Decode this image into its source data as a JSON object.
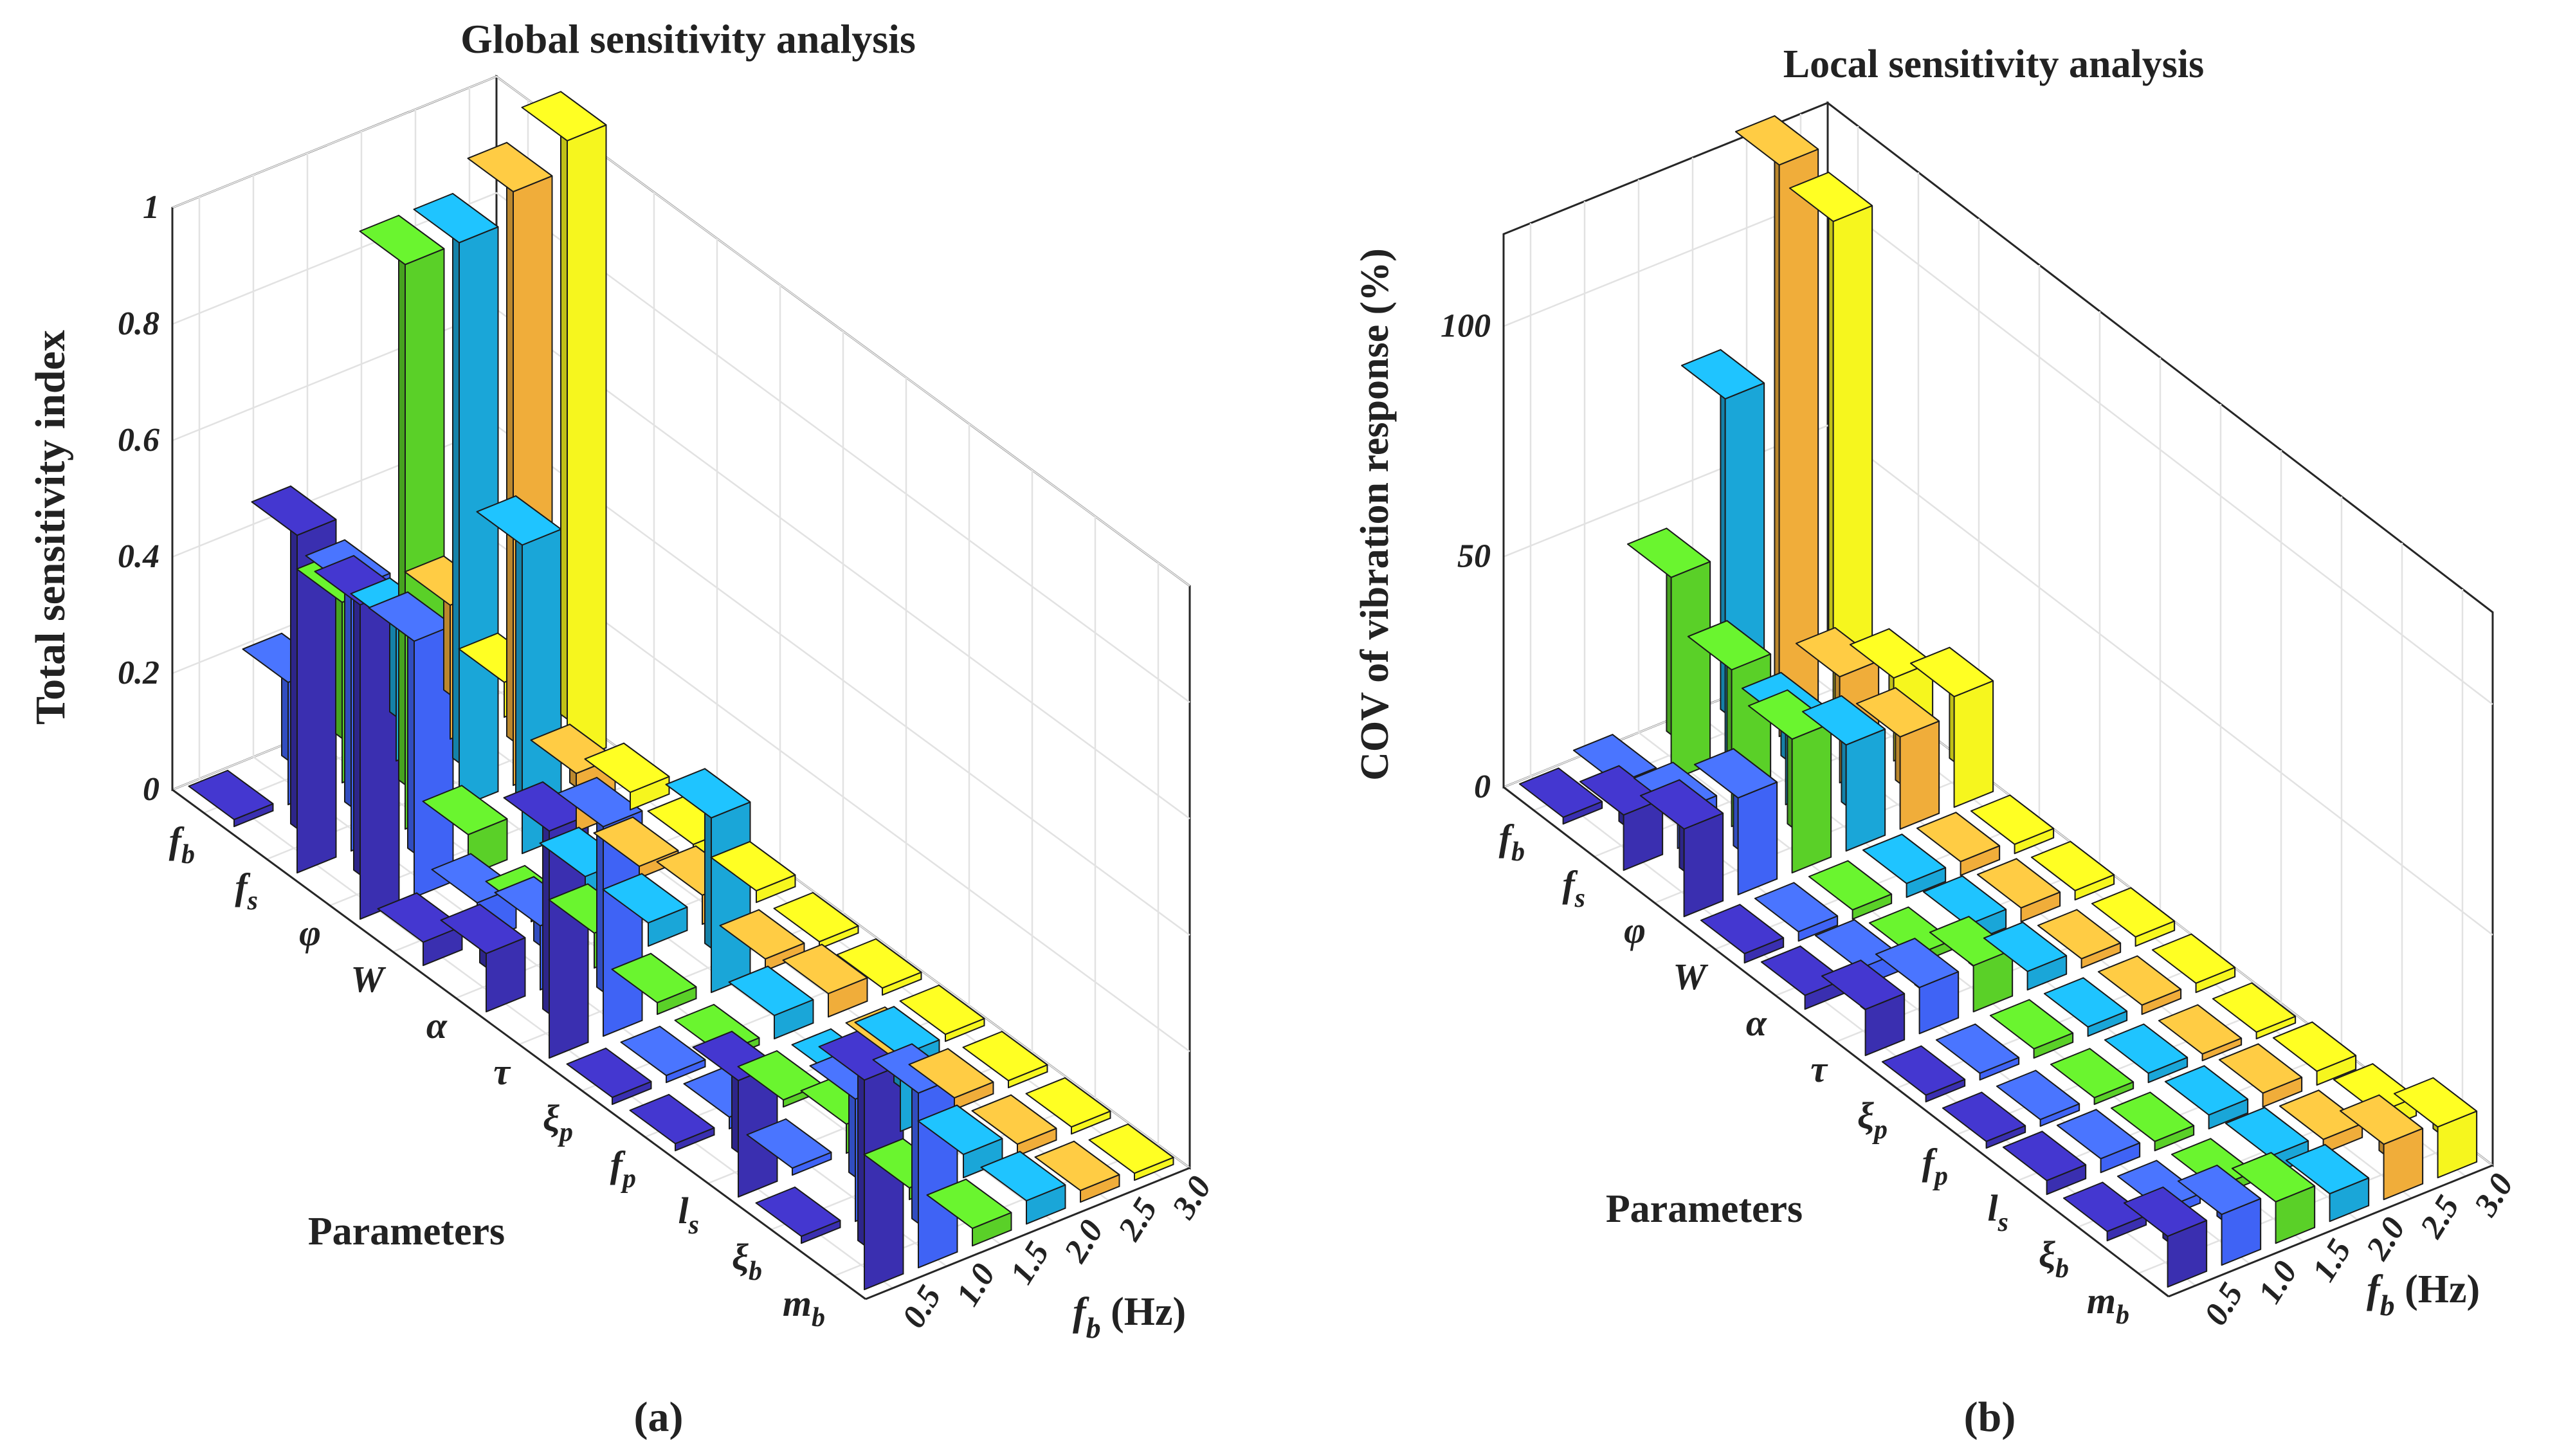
{
  "chart_data": [
    {
      "type": "bar3d",
      "title": "Global sensitivity analysis",
      "zlabel": "Total sensitivity index",
      "ylabel": "Parameters",
      "xlabel_main": "f",
      "xlabel_sub": "b",
      "xlabel_unit": " (Hz)",
      "subfigure_label": "(a)",
      "zlim": [
        0,
        1
      ],
      "z_ticks": [
        "0",
        "0.2",
        "0.4",
        "0.6",
        "0.8",
        "1"
      ],
      "frequencies": [
        "0.5",
        "1.0",
        "1.5",
        "2.0",
        "2.5",
        "3.0"
      ],
      "parameters": [
        {
          "sym": "f",
          "sub": "b"
        },
        {
          "sym": "f",
          "sub": "s"
        },
        {
          "sym": "φ",
          "sub": ""
        },
        {
          "sym": "W",
          "sub": ""
        },
        {
          "sym": "α",
          "sub": ""
        },
        {
          "sym": "τ",
          "sub": ""
        },
        {
          "sym": "ξ",
          "sub": "p"
        },
        {
          "sym": "f",
          "sub": "p"
        },
        {
          "sym": "l",
          "sub": "s"
        },
        {
          "sym": "ξ",
          "sub": "b"
        },
        {
          "sym": "m",
          "sub": "b"
        }
      ],
      "series": [
        {
          "frequency": "0.5",
          "color": "#3a2fb0",
          "values": [
            0.01,
            0.58,
            0.54,
            0.04,
            0.1,
            0.39,
            0.01,
            0.01,
            0.2,
            0.01,
            0.36
          ]
        },
        {
          "frequency": "1.0",
          "color": "#3f63f5",
          "values": [
            0.21,
            0.45,
            0.44,
            0.07,
            0.11,
            0.36,
            0.01,
            0.02,
            0.01,
            0.21,
            0.3
          ]
        },
        {
          "frequency": "1.5",
          "color": "#5ad028",
          "values": [
            0.31,
            0.97,
            0.07,
            0.01,
            0.06,
            0.02,
            0.01,
            0.01,
            0.05,
            0.02,
            0.03
          ]
        },
        {
          "frequency": "2.0",
          "color": "#1aa6d8",
          "values": [
            0.23,
            0.97,
            0.53,
            0.04,
            0.04,
            0.3,
            0.04,
            0.01,
            0.13,
            0.04,
            0.04
          ]
        },
        {
          "frequency": "2.5",
          "color": "#f0ad3a",
          "values": [
            0.23,
            1.02,
            0.1,
            0.02,
            0.05,
            0.02,
            0.04,
            0.01,
            0.02,
            0.02,
            0.02
          ]
        },
        {
          "frequency": "3.0",
          "color": "#f6f61e",
          "values": [
            0.06,
            1.07,
            0.03,
            0.02,
            0.02,
            0.01,
            0.01,
            0.01,
            0.01,
            0.01,
            0.01
          ]
        }
      ]
    },
    {
      "type": "bar3d",
      "title": "Local sensitivity analysis",
      "zlabel": "COV of vibration response (%)",
      "ylabel": "Parameters",
      "xlabel_main": "f",
      "xlabel_sub": "b",
      "xlabel_unit": " (Hz)",
      "subfigure_label": "(b)",
      "zlim": [
        0,
        120
      ],
      "z_ticks": [
        "0",
        "50",
        "100"
      ],
      "frequencies": [
        "0.5",
        "1.0",
        "1.5",
        "2.0",
        "2.5",
        "3.0"
      ],
      "parameters": [
        {
          "sym": "f",
          "sub": "b"
        },
        {
          "sym": "f",
          "sub": "s"
        },
        {
          "sym": "φ",
          "sub": ""
        },
        {
          "sym": "W",
          "sub": ""
        },
        {
          "sym": "α",
          "sub": ""
        },
        {
          "sym": "τ",
          "sub": ""
        },
        {
          "sym": "ξ",
          "sub": "p"
        },
        {
          "sym": "f",
          "sub": "p"
        },
        {
          "sym": "l",
          "sub": "s"
        },
        {
          "sym": "ξ",
          "sub": "b"
        },
        {
          "sym": "m",
          "sub": "b"
        }
      ],
      "series": [
        {
          "frequency": "0.5",
          "color": "#3a2fb0",
          "values": [
            1,
            12,
            19,
            2,
            3,
            10,
            1,
            1,
            3,
            2,
            11
          ]
        },
        {
          "frequency": "1.0",
          "color": "#3f63f5",
          "values": [
            4,
            8,
            21,
            2,
            4,
            10,
            1,
            1,
            3,
            2,
            11
          ]
        },
        {
          "frequency": "1.5",
          "color": "#5ad028",
          "values": [
            44,
            34,
            29,
            2,
            2,
            10,
            2,
            1,
            2,
            2,
            9
          ]
        },
        {
          "frequency": "2.0",
          "color": "#1aa6d8",
          "values": [
            78,
            18,
            23,
            3,
            4,
            4,
            2,
            2,
            3,
            4,
            6
          ]
        },
        {
          "frequency": "2.5",
          "color": "#f0ad3a",
          "values": [
            124,
            23,
            20,
            3,
            3,
            2,
            2,
            1,
            3,
            3,
            12
          ]
        },
        {
          "frequency": "3.0",
          "color": "#f6f61e",
          "values": [
            107,
            18,
            24,
            2,
            2,
            2,
            2,
            1,
            3,
            4,
            11
          ]
        }
      ]
    }
  ]
}
